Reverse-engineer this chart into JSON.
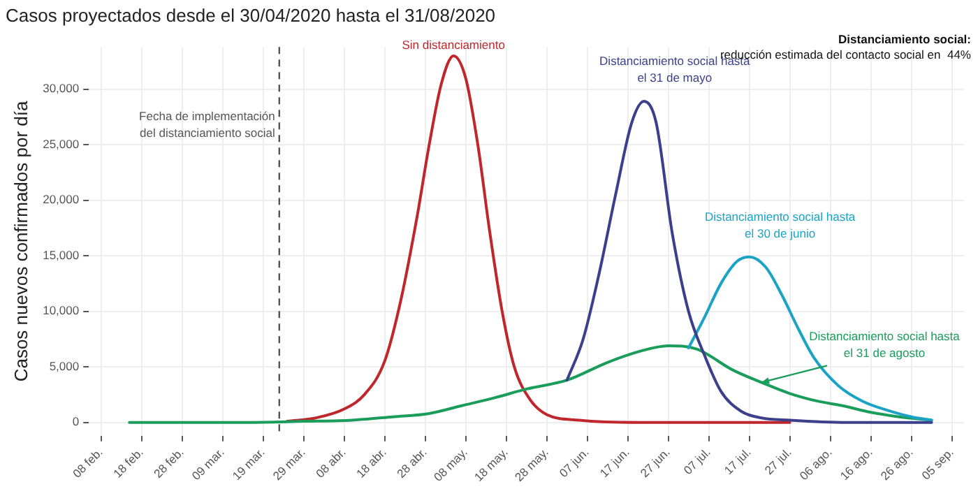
{
  "chart_data": {
    "type": "line",
    "title": "Casos proyectados desde el 30/04/2020 hasta el 31/08/2020",
    "ylabel": "Casos nuevos confirmados por día",
    "xlim": [
      "2020-02-05",
      "2020-09-08"
    ],
    "xticks": [
      {
        "value": "2020-02-08",
        "label": "08 feb."
      },
      {
        "value": "2020-02-18",
        "label": "18 feb."
      },
      {
        "value": "2020-02-28",
        "label": "28 feb."
      },
      {
        "value": "2020-03-09",
        "label": "09 mar."
      },
      {
        "value": "2020-03-19",
        "label": "19 mar."
      },
      {
        "value": "2020-03-29",
        "label": "29 mar."
      },
      {
        "value": "2020-04-08",
        "label": "08 abr."
      },
      {
        "value": "2020-04-18",
        "label": "18 abr."
      },
      {
        "value": "2020-04-28",
        "label": "28 abr."
      },
      {
        "value": "2020-05-08",
        "label": "08 may."
      },
      {
        "value": "2020-05-18",
        "label": "18 may."
      },
      {
        "value": "2020-05-28",
        "label": "28 may."
      },
      {
        "value": "2020-06-07",
        "label": "07 jun."
      },
      {
        "value": "2020-06-17",
        "label": "17 jun."
      },
      {
        "value": "2020-06-27",
        "label": "27 jun."
      },
      {
        "value": "2020-07-07",
        "label": "07 jul."
      },
      {
        "value": "2020-07-17",
        "label": "17 jul."
      },
      {
        "value": "2020-07-27",
        "label": "27 jul."
      },
      {
        "value": "2020-08-06",
        "label": "06 ago."
      },
      {
        "value": "2020-08-16",
        "label": "16 ago."
      },
      {
        "value": "2020-08-26",
        "label": "26 ago."
      },
      {
        "value": "2020-09-05",
        "label": "05 sep."
      }
    ],
    "ylim": [
      -1200,
      33800
    ],
    "yticks": [
      {
        "value": 0,
        "label": "0"
      },
      {
        "value": 5000,
        "label": "5,000"
      },
      {
        "value": 10000,
        "label": "10,000"
      },
      {
        "value": 15000,
        "label": "15,000"
      },
      {
        "value": 20000,
        "label": "20,000"
      },
      {
        "value": 25000,
        "label": "25,000"
      },
      {
        "value": 30000,
        "label": "30,000"
      }
    ],
    "grid": true,
    "legend": false,
    "marker": "none",
    "line_style": "solid",
    "series": [
      {
        "color": "#3b3f8c",
        "x": [
          "2020-06-02",
          "2020-06-06",
          "2020-06-10",
          "2020-06-14",
          "2020-06-18",
          "2020-06-21",
          "2020-06-24",
          "2020-06-28",
          "2020-07-02",
          "2020-07-06",
          "2020-07-10",
          "2020-07-15",
          "2020-07-20",
          "2020-07-27",
          "2020-08-10",
          "2020-08-31"
        ],
        "values": [
          3800,
          7500,
          13500,
          20500,
          27000,
          28900,
          27000,
          17000,
          10000,
          6000,
          2800,
          1000,
          400,
          200,
          0,
          0
        ]
      },
      {
        "color": "#1ba3c6",
        "x": [
          "2020-07-02",
          "2020-07-06",
          "2020-07-10",
          "2020-07-14",
          "2020-07-17",
          "2020-07-21",
          "2020-07-25",
          "2020-07-29",
          "2020-08-02",
          "2020-08-08",
          "2020-08-14",
          "2020-08-20",
          "2020-08-26",
          "2020-08-31"
        ],
        "values": [
          6700,
          9500,
          12500,
          14500,
          14900,
          14000,
          11500,
          8500,
          5800,
          3300,
          1900,
          1100,
          500,
          200
        ]
      },
      {
        "color": "#1a9c5b",
        "x": [
          "2020-02-15",
          "2020-03-01",
          "2020-03-15",
          "2020-03-29",
          "2020-04-10",
          "2020-04-20",
          "2020-04-29",
          "2020-05-07",
          "2020-05-15",
          "2020-05-23",
          "2020-06-02",
          "2020-06-12",
          "2020-06-20",
          "2020-06-27",
          "2020-07-04",
          "2020-07-13",
          "2020-07-20",
          "2020-07-27",
          "2020-08-03",
          "2020-08-09",
          "2020-08-16",
          "2020-08-23",
          "2020-08-31"
        ],
        "values": [
          0,
          0,
          0,
          100,
          200,
          500,
          800,
          1500,
          2200,
          3000,
          3800,
          5400,
          6400,
          6900,
          6600,
          4700,
          3600,
          2600,
          1900,
          1500,
          900,
          500,
          200
        ]
      },
      {
        "color": "#c0272d",
        "x": [
          "2020-03-25",
          "2020-04-01",
          "2020-04-08",
          "2020-04-13",
          "2020-04-18",
          "2020-04-22",
          "2020-04-26",
          "2020-04-29",
          "2020-05-02",
          "2020-05-05",
          "2020-05-08",
          "2020-05-11",
          "2020-05-14",
          "2020-05-17",
          "2020-05-20",
          "2020-05-24",
          "2020-05-28",
          "2020-06-05",
          "2020-06-20",
          "2020-07-15",
          "2020-07-27"
        ],
        "values": [
          100,
          400,
          1200,
          2500,
          5500,
          11000,
          18500,
          25000,
          30500,
          33000,
          31000,
          25000,
          17000,
          10000,
          5000,
          2000,
          700,
          200,
          0,
          0,
          0
        ]
      }
    ],
    "ref_lines": [
      {
        "axis": "x",
        "value": "2020-03-23",
        "label": "Fecha de implementación del distanciamiento social",
        "color": "#555555",
        "line_style": "dashed"
      }
    ],
    "annotations": [
      {
        "text": "Sin distanciamiento",
        "x": "2020-05-05",
        "y": 33000
      },
      {
        "text": "Distanciamiento social hasta el 31 de mayo",
        "x": "2020-06-21",
        "y": 28900
      },
      {
        "text": "Distanciamiento social hasta el 30 de junio",
        "x": "2020-07-17",
        "y": 14900
      },
      {
        "text": "Distanciamiento social hasta el 31 de agosto",
        "x": "2020-07-20",
        "y": 3600
      },
      "Distanciamiento social:",
      "reducción estimada del contacto social en  44%"
    ]
  }
}
